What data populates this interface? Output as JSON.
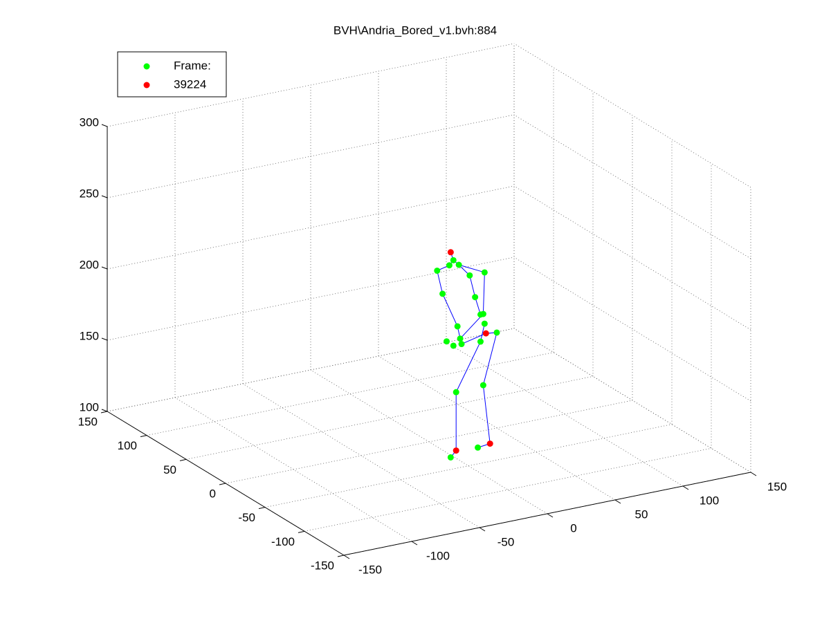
{
  "chart_data": {
    "type": "scatter3d",
    "title": "BVH\\Andria_Bored_v1.bvh:884",
    "xlim": [
      -150,
      150
    ],
    "xticks": [
      -150,
      -100,
      -50,
      0,
      50,
      100,
      150
    ],
    "ylim": [
      -150,
      150
    ],
    "yticks": [
      -150,
      -100,
      -50,
      0,
      50,
      100,
      150
    ],
    "zlim": [
      100,
      300
    ],
    "zticks": [
      100,
      150,
      200,
      250,
      300
    ],
    "grid": true,
    "legend": "upper left",
    "series": [
      {
        "name": "Frame:",
        "color": "#00ff00",
        "x": [
          18,
          15,
          22,
          6,
          30,
          41,
          10,
          34,
          38,
          40,
          21,
          41,
          50,
          13,
          18,
          23,
          24,
          38,
          20,
          40,
          36,
          16
        ],
        "y": [
          0,
          0,
          0,
          0,
          0,
          0,
          0,
          0,
          0,
          0,
          0,
          0,
          0,
          0,
          0,
          0,
          0,
          0,
          0,
          0,
          0,
          0
        ],
        "z": [
          224,
          221,
          220,
          219,
          211,
          211,
          202,
          195,
          182,
          182,
          177,
          175,
          167,
          168,
          164,
          168,
          164,
          163,
          131,
          132,
          89,
          86
        ]
      },
      {
        "name": "39224",
        "color": "#ff0000",
        "x": [
          16,
          42,
          45,
          20
        ],
        "y": [
          0,
          0,
          0,
          0
        ],
        "z": [
          230,
          168,
          90,
          90
        ]
      }
    ],
    "lines": [
      {
        "color": "#0000ff",
        "x": [
          23,
          40,
          41,
          22,
          18,
          16
        ],
        "y": [
          0,
          0,
          0,
          0,
          0,
          0
        ],
        "z": [
          168,
          182,
          211,
          220,
          224,
          230
        ]
      },
      {
        "color": "#0000ff",
        "x": [
          18,
          15,
          6,
          10,
          21,
          23
        ],
        "y": [
          0,
          0,
          0,
          0,
          0,
          0
        ],
        "z": [
          224,
          221,
          219,
          202,
          177,
          168
        ]
      },
      {
        "color": "#0000ff",
        "x": [
          22,
          30,
          34,
          38
        ],
        "y": [
          0,
          0,
          0,
          0
        ],
        "z": [
          220,
          211,
          195,
          182
        ]
      },
      {
        "color": "#0000ff",
        "x": [
          41,
          38,
          20,
          20,
          16
        ],
        "y": [
          0,
          0,
          0,
          0,
          0
        ],
        "z": [
          175,
          163,
          131,
          90,
          86
        ]
      },
      {
        "color": "#0000ff",
        "x": [
          24,
          42,
          50,
          40,
          45,
          36
        ],
        "y": [
          0,
          0,
          0,
          0,
          0,
          0
        ],
        "z": [
          164,
          168,
          167,
          132,
          90,
          89
        ]
      }
    ]
  }
}
